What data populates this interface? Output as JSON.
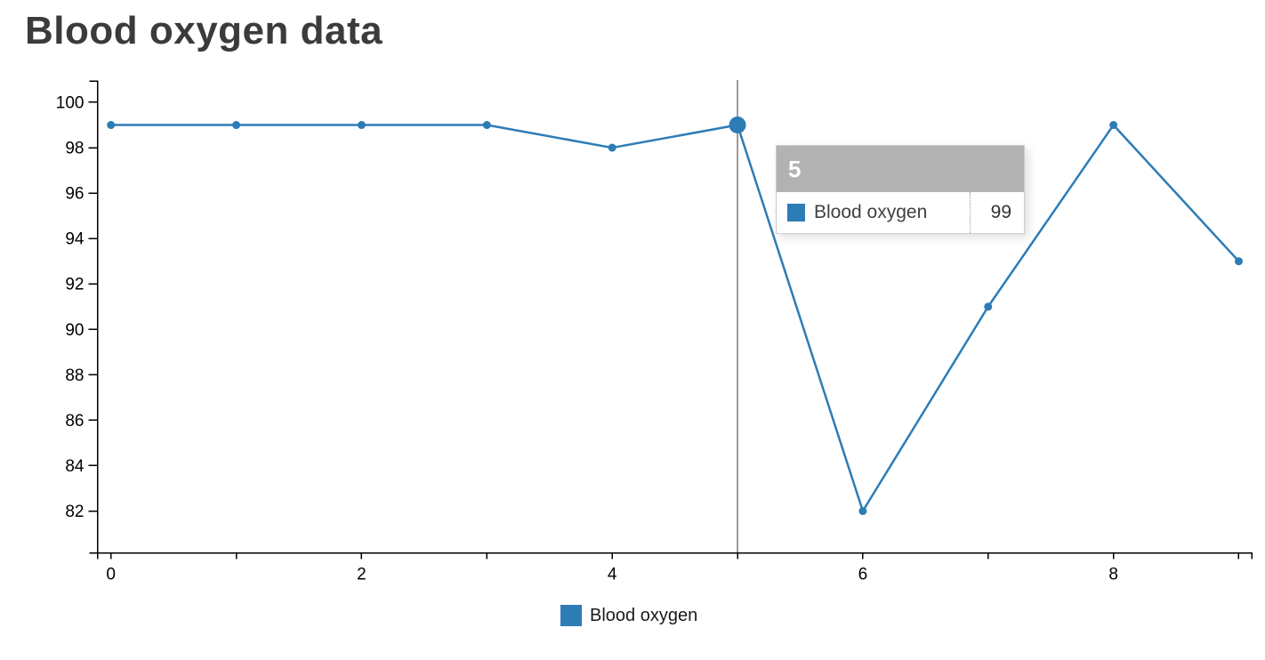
{
  "page": {
    "title": "Blood oxygen data"
  },
  "chart_data": {
    "type": "line",
    "title": "Blood oxygen data",
    "xlabel": "",
    "ylabel": "",
    "series": [
      {
        "name": "Blood oxygen",
        "color": "#2d7cb6",
        "x": [
          0,
          1,
          2,
          3,
          4,
          5,
          6,
          7,
          8,
          9
        ],
        "values": [
          99,
          99,
          99,
          99,
          98,
          99,
          82,
          91,
          99,
          93
        ]
      }
    ],
    "xlim": [
      -0.108,
      9.103
    ],
    "ylim": [
      80.16,
      100.94
    ],
    "x_ticks": [
      0,
      1,
      2,
      3,
      4,
      5,
      6,
      7,
      8,
      9
    ],
    "x_tick_labels": [
      "0",
      "",
      "2",
      "",
      "4",
      "",
      "6",
      "",
      "8",
      ""
    ],
    "y_ticks": [
      82,
      84,
      86,
      88,
      90,
      92,
      94,
      96,
      98,
      100
    ],
    "grid": false,
    "legend_position": "bottom",
    "hover_index": 5
  },
  "crosshair": {
    "x": 5,
    "color": "#9b9b9b"
  },
  "tooltip": {
    "header": "5",
    "header_bg": "#b2b2b2",
    "series_name": "Blood oxygen",
    "value": "99",
    "swatch_color": "#2d7cb6"
  },
  "legend": {
    "label": "Blood oxygen",
    "swatch_color": "#2d7cb6"
  },
  "colors": {
    "line": "#2d7cb6",
    "axis": "#000000",
    "tick_label": "#000000",
    "title": "#3b3b3b"
  }
}
